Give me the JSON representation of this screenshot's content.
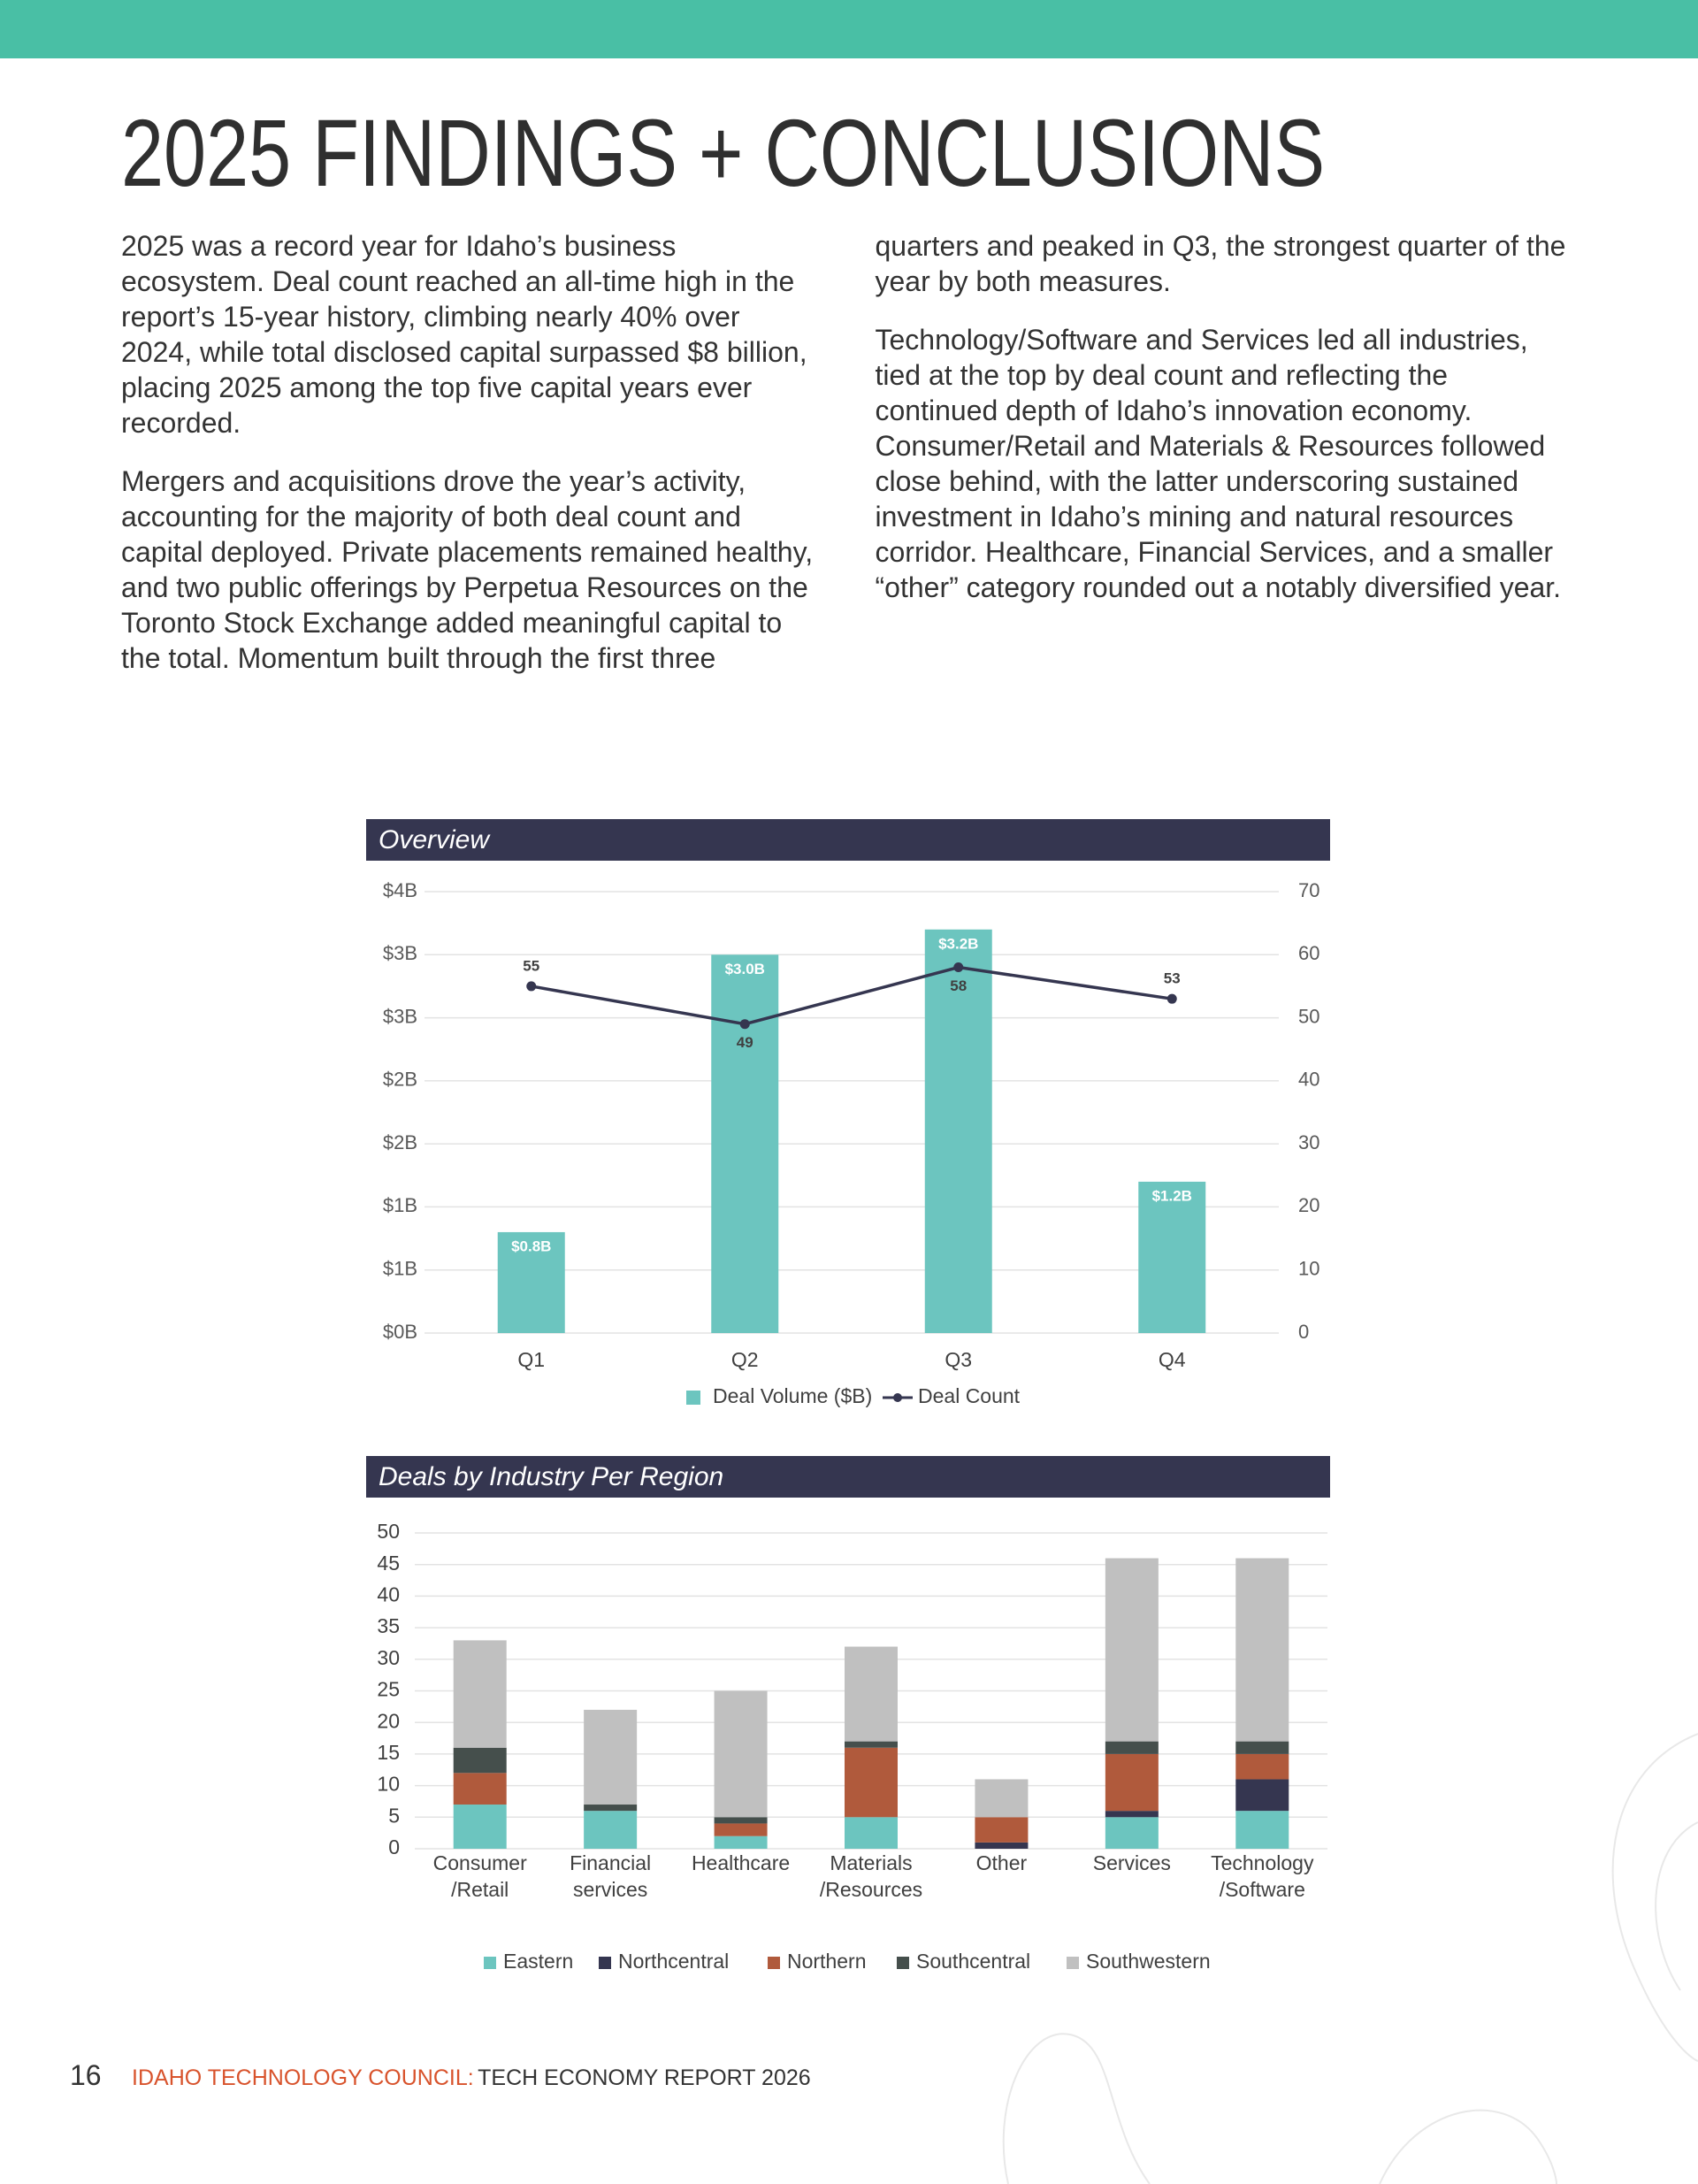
{
  "title": "2025 FINDINGS + CONCLUSIONS",
  "paragraphs": [
    "2025 was a record year for Idaho’s business ecosystem. Deal count reached an all-time high in the report’s 15-year history, climbing nearly 40% over 2024, while total disclosed capital surpassed $8 billion, placing 2025 among the top five capital years ever recorded.",
    "Mergers and acquisitions drove the year’s activity, accounting for the majority of both deal count and capital deployed. Private placements remained healthy, and two public offerings by Perpetua Resources on the Toronto Stock Exchange added meaningful capital to the total. Momentum built through the first three quarters and peaked in Q3, the strongest quarter of the year by both measures.",
    "Technology/Software and Services led all industries, tied at the top by deal count and reflecting the continued depth of Idaho’s innovation economy. Consumer/Retail and Materials & Resources followed close behind, with the latter underscoring sustained investment in Idaho’s mining and natural resources corridor. Healthcare, Financial Services, and a smaller “other” category rounded out a notably diversified year."
  ],
  "chart_data": [
    {
      "type": "bar_line",
      "title": "Overview",
      "categories": [
        "Q1",
        "Q2",
        "Q3",
        "Q4"
      ],
      "series": [
        {
          "name": "Deal Volume ($B)",
          "type": "bar",
          "color": "#6cc5bf",
          "values": [
            0.8,
            3.0,
            3.2,
            1.2
          ],
          "value_labels": [
            "$0.8B",
            "$3.0B",
            "$3.2B",
            "$1.2B"
          ]
        },
        {
          "name": "Deal Count",
          "type": "line",
          "axis": "y2",
          "color": "#353650",
          "values": [
            55,
            49,
            58,
            53
          ]
        }
      ],
      "ylim": [
        0,
        3.5
      ],
      "yticks": [
        {
          "value": 0,
          "label": "$0B"
        },
        {
          "value": 0.5,
          "label": "$1B"
        },
        {
          "value": 1,
          "label": "$1B"
        },
        {
          "value": 1.5,
          "label": "$2B"
        },
        {
          "value": 2,
          "label": "$2B"
        },
        {
          "value": 2.5,
          "label": "$3B"
        },
        {
          "value": 3,
          "label": "$3B"
        },
        {
          "value": 3.5,
          "label": "$4B"
        }
      ],
      "y2lim": [
        0,
        70
      ],
      "y2ticks": [
        0,
        10,
        20,
        30,
        40,
        50,
        60,
        70
      ],
      "grid": true,
      "legend": "bottom"
    },
    {
      "type": "stacked_bar",
      "title": "Deals by Industry Per Region",
      "categories": [
        "Consumer\n/Retail",
        "Financial\nservices",
        "Healthcare",
        "Materials\n/Resources",
        "Other",
        "Services",
        "Technology\n/Software"
      ],
      "series": [
        {
          "name": "Eastern",
          "color": "#6cc5bf",
          "values": [
            7,
            6,
            2,
            5,
            0,
            5,
            6
          ]
        },
        {
          "name": "Northcentral",
          "color": "#353650",
          "values": [
            0,
            0,
            0,
            0,
            1,
            1,
            5
          ]
        },
        {
          "name": "Northern",
          "color": "#b05a3c",
          "values": [
            5,
            0,
            2,
            11,
            4,
            9,
            4
          ]
        },
        {
          "name": "Southcentral",
          "color": "#454f4c",
          "values": [
            4,
            1,
            1,
            1,
            0,
            2,
            2
          ]
        },
        {
          "name": "Southwestern",
          "color": "#c0c0c0",
          "values": [
            17,
            15,
            20,
            15,
            6,
            29,
            29
          ]
        }
      ],
      "ylim": [
        0,
        50
      ],
      "yticks": [
        0,
        5,
        10,
        15,
        20,
        25,
        30,
        35,
        40,
        45,
        50
      ],
      "grid": true,
      "legend": "bottom"
    }
  ],
  "footer": {
    "page": "16",
    "organization": "IDAHO TECHNOLOGY COUNCIL:",
    "report": "TECH ECONOMY REPORT 2026"
  }
}
